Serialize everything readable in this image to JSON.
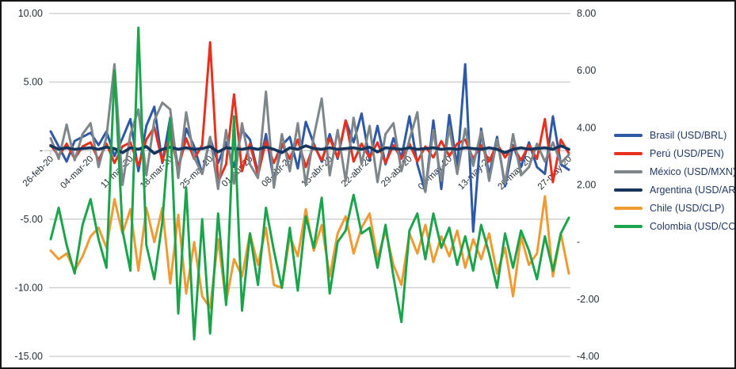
{
  "chart_data": {
    "type": "line",
    "title": "",
    "xlabel": "",
    "ylabel": "",
    "grid": true,
    "legend_position": "right",
    "n_points": 66,
    "x_tick_labels": [
      "26-feb-20",
      "04-mar-20",
      "11-mar-20",
      "18-mar-20",
      "25-mar-20",
      "01-abr-20",
      "08-abr-20",
      "15-abr-20",
      "22-abr-20",
      "29-abr-20",
      "06-may-20",
      "13-may-20",
      "20-may-20",
      "27-may-20"
    ],
    "x_tick_indices": [
      0,
      5,
      10,
      15,
      20,
      25,
      30,
      35,
      40,
      45,
      50,
      55,
      60,
      65
    ],
    "left_axis": {
      "tick_labels": [
        "10.00",
        "5.00",
        "-",
        "-5.00",
        "-10.00",
        "-15.00"
      ],
      "tick_values": [
        10,
        5,
        0,
        -5,
        -10,
        -15
      ],
      "range": [
        -15,
        10
      ]
    },
    "right_axis": {
      "tick_labels": [
        "8.00",
        "6.00",
        "4.00",
        "2.00",
        "-",
        "-2.00",
        "-4.00"
      ],
      "tick_values": [
        8,
        6,
        4,
        2,
        0,
        -2,
        -4
      ],
      "range": [
        -4,
        8
      ]
    },
    "series": [
      {
        "name": "Brasil (USD/BRL)",
        "axis": "left",
        "color": "#2e59a6",
        "values": [
          1.4,
          0.3,
          -0.8,
          0.7,
          1.0,
          1.3,
          0.4,
          1.4,
          -0.4,
          0.9,
          2.3,
          -1.5,
          1.8,
          3.2,
          -0.9,
          2.4,
          -1.4,
          1.6,
          0.3,
          -1.7,
          0.9,
          -0.9,
          0.6,
          -1.2,
          1.5,
          0.8,
          -1.6,
          1.2,
          -2.2,
          0.4,
          1.0,
          -1.3,
          2.1,
          0.5,
          -0.8,
          1.2,
          -0.6,
          2.2,
          0.6,
          2.7,
          -0.7,
          1.8,
          -1.0,
          0.9,
          -0.5,
          2.5,
          -1.0,
          -3.0,
          2.2,
          -2.8,
          2.6,
          -1.2,
          6.3,
          -5.9,
          1.6,
          -1.8,
          1.0,
          -2.6,
          0.4,
          -1.2,
          0.6,
          -1.2,
          -1.7,
          2.5,
          -1.0,
          -1.4
        ]
      },
      {
        "name": "Perú (USD/PEN)",
        "axis": "left",
        "color": "#e8301f",
        "values": [
          0.4,
          -0.4,
          0.5,
          -0.6,
          0.3,
          0.6,
          -0.7,
          0.5,
          -0.9,
          0.3,
          0.6,
          -1.1,
          0.8,
          1.7,
          -0.8,
          1.2,
          -1.3,
          0.9,
          -0.6,
          0.4,
          7.9,
          -2.3,
          -1.0,
          4.1,
          -1.5,
          0.5,
          -1.8,
          0.7,
          -0.9,
          0.5,
          -0.6,
          0.8,
          -1.2,
          0.4,
          -0.7,
          0.9,
          -0.5,
          2.2,
          -0.8,
          0.5,
          -0.5,
          0.6,
          -0.9,
          0.4,
          -0.6,
          0.5,
          -0.8,
          0.3,
          -0.5,
          0.7,
          -0.4,
          0.5,
          0.8,
          -0.6,
          0.4,
          -0.8,
          0.5,
          -0.5,
          0.3,
          -0.7,
          0.4,
          -0.6,
          2.3,
          -2.3,
          0.8,
          -0.2
        ]
      },
      {
        "name": "México (USD/MXN)",
        "axis": "left",
        "color": "#7f868a",
        "values": [
          0.9,
          -0.6,
          1.9,
          -0.7,
          1.2,
          2.0,
          -1.2,
          1.0,
          6.3,
          -2.5,
          1.2,
          3.0,
          -1.8,
          2.2,
          3.5,
          3.0,
          -2.0,
          2.8,
          -0.5,
          -1.7,
          1.0,
          -2.8,
          1.5,
          -2.4,
          2.0,
          -1.0,
          -2.0,
          4.3,
          -2.7,
          1.2,
          -1.5,
          2.0,
          -2.5,
          1.0,
          3.8,
          -1.8,
          1.5,
          -2.2,
          2.4,
          -1.0,
          1.8,
          -2.3,
          1.2,
          2.0,
          -1.5,
          0.8,
          2.8,
          -3.0,
          1.5,
          -2.2,
          1.7,
          -1.7,
          1.6,
          -1.1,
          1.4,
          -2.2,
          0.8,
          -2.4,
          1.2,
          -1.8,
          -1.2,
          0.5,
          -0.8,
          0.6,
          -0.9,
          -0.3
        ]
      },
      {
        "name": "Argentina (USD/ARS)",
        "axis": "left",
        "color": "#17365d",
        "values": [
          0.35,
          0.1,
          0.2,
          0.1,
          0.15,
          0.2,
          0.1,
          0.25,
          0.15,
          -0.15,
          0.2,
          0.1,
          0.3,
          -0.2,
          0.1,
          0.25,
          0.1,
          0.2,
          0.1,
          0.15,
          0.3,
          -0.1,
          0.2,
          0.15,
          0.1,
          0.2,
          0.1,
          0.25,
          0.1,
          -0.15,
          0.2,
          0.1,
          0.35,
          0.15,
          0.1,
          0.2,
          0.1,
          0.15,
          0.2,
          0.1,
          0.25,
          -0.1,
          0.2,
          0.15,
          0.1,
          0.2,
          0.1,
          0.15,
          0.2,
          0.1,
          0.15,
          0.1,
          0.2,
          0.15,
          0.1,
          0.2,
          0.1,
          -0.15,
          0.1,
          0.2,
          0.1,
          0.15,
          0.2,
          0.1,
          0.35,
          0.1
        ]
      },
      {
        "name": "Chile (USD/CLP)",
        "axis": "right",
        "color": "#f09b32",
        "values": [
          -0.3,
          -0.6,
          -0.4,
          -1.0,
          -0.5,
          0.2,
          0.5,
          -0.2,
          1.5,
          0.3,
          1.15,
          -1.0,
          1.2,
          0.0,
          1.2,
          -1.45,
          0.95,
          -1.8,
          0.0,
          -1.9,
          -2.3,
          0.1,
          -2.1,
          -0.6,
          -1.2,
          0.3,
          -0.8,
          0.5,
          -1.5,
          -1.6,
          0.2,
          -0.5,
          1.15,
          -0.3,
          0.6,
          -1.2,
          0.3,
          0.9,
          -0.4,
          0.5,
          1.0,
          -0.6,
          0.4,
          -0.8,
          -1.5,
          0.3,
          -0.4,
          0.6,
          -0.7,
          0.2,
          -0.5,
          0.4,
          -0.9,
          0.1,
          -0.6,
          0.3,
          -1.1,
          -0.2,
          -1.9,
          0.2,
          -0.8,
          -0.4,
          1.6,
          -1.2,
          0.3,
          -1.1
        ]
      },
      {
        "name": "Colombia (USD/COP)",
        "axis": "right",
        "color": "#1ca44d",
        "values": [
          0.1,
          1.2,
          -0.1,
          -1.1,
          0.6,
          1.5,
          0.1,
          -0.9,
          6.0,
          0.4,
          -1.0,
          7.5,
          -0.1,
          -1.3,
          0.7,
          4.3,
          -2.5,
          1.9,
          -3.4,
          0.8,
          -3.2,
          1.0,
          -2.2,
          4.4,
          -2.4,
          0.3,
          -1.5,
          1.2,
          -0.3,
          -1.6,
          0.5,
          -1.7,
          0.9,
          -0.2,
          1.55,
          -1.8,
          0.0,
          0.4,
          1.65,
          0.3,
          0.5,
          -0.9,
          0.6,
          -1.2,
          -2.8,
          0.4,
          1.0,
          -0.6,
          1.0,
          -0.2,
          0.5,
          -0.8,
          0.2,
          -1.0,
          0.6,
          -0.4,
          -1.6,
          0.3,
          -0.9,
          0.4,
          -0.3,
          -1.3,
          0.2,
          -1.0,
          0.3,
          0.85
        ]
      }
    ],
    "colors": {
      "grid": "#c8cbce",
      "axis_text": "#233038",
      "legend_text": "#1f3864",
      "frame_border": "#161616"
    }
  }
}
